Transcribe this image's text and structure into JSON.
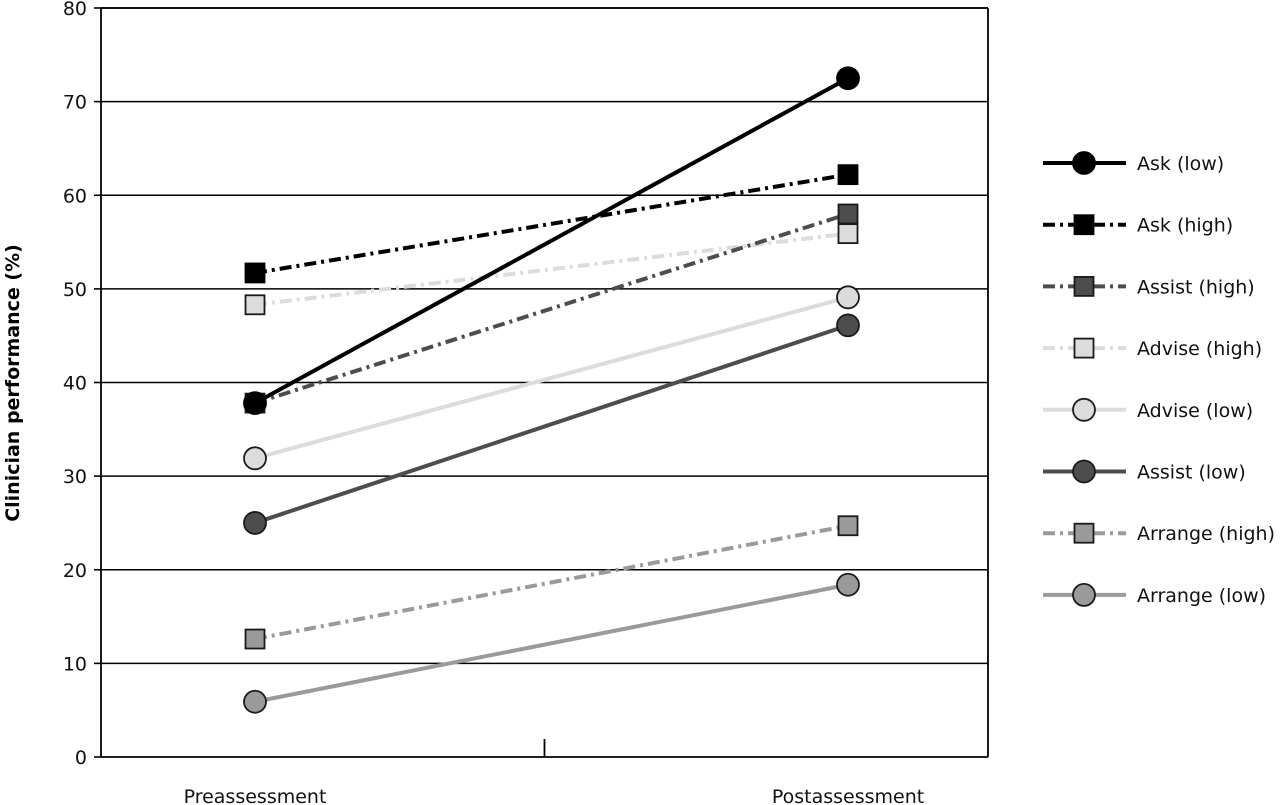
{
  "chart_data": {
    "type": "line",
    "title": "",
    "xlabel": "",
    "ylabel": "Clinician performance (%)",
    "categories": [
      "Preassessment",
      "Postassessment"
    ],
    "ylim": [
      0,
      80
    ],
    "yticks": [
      "0",
      "10",
      "20",
      "30",
      "40",
      "50",
      "60",
      "70",
      "80"
    ],
    "grid": "horizontal",
    "legend_position": "right",
    "series": [
      {
        "name": "Ask (low)",
        "values": [
          37.8,
          72.5
        ],
        "color": "#000000",
        "marker": "circle",
        "dash": "solid"
      },
      {
        "name": "Ask (high)",
        "values": [
          51.7,
          62.2
        ],
        "color": "#000000",
        "marker": "square",
        "dash": "dashdot"
      },
      {
        "name": "Assist (high)",
        "values": [
          37.8,
          58.0
        ],
        "color": "#4d4d4d",
        "marker": "square",
        "dash": "dashdot"
      },
      {
        "name": "Advise (high)",
        "values": [
          48.3,
          55.9
        ],
        "color": "#dcdcdc",
        "marker": "square",
        "dash": "dashdot"
      },
      {
        "name": "Advise (low)",
        "values": [
          31.9,
          49.1
        ],
        "color": "#dcdcdc",
        "marker": "circle",
        "dash": "solid"
      },
      {
        "name": "Assist (low)",
        "values": [
          25.0,
          46.1
        ],
        "color": "#4d4d4d",
        "marker": "circle",
        "dash": "solid"
      },
      {
        "name": "Arrange (high)",
        "values": [
          12.6,
          24.7
        ],
        "color": "#9a9a9a",
        "marker": "square",
        "dash": "dashdot"
      },
      {
        "name": "Arrange (low)",
        "values": [
          5.9,
          18.4
        ],
        "color": "#9a9a9a",
        "marker": "circle",
        "dash": "solid"
      }
    ]
  }
}
